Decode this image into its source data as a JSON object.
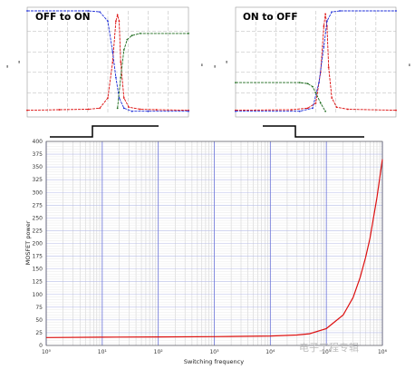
{
  "watermark": "电子工程专辑",
  "colors": {
    "red": "#dd1111",
    "blue": "#1f2fd8",
    "green": "#1e6b1e",
    "grid_major": "#6b74d8",
    "grid_minor": "#c9c9c9"
  },
  "chart_data": [
    {
      "id": "turn_on",
      "type": "line",
      "title": "OFF to ON",
      "series": [
        {
          "color_key": "red",
          "x": [
            0,
            0.2,
            0.38,
            0.45,
            0.5,
            0.53,
            0.55,
            0.56,
            0.57,
            0.58,
            0.6,
            0.63,
            0.7,
            0.8,
            1
          ],
          "y": [
            0.03,
            0.035,
            0.04,
            0.05,
            0.15,
            0.5,
            0.9,
            0.96,
            0.9,
            0.5,
            0.15,
            0.06,
            0.04,
            0.035,
            0.03
          ]
        },
        {
          "color_key": "blue",
          "x": [
            0,
            0.38,
            0.45,
            0.5,
            0.53,
            0.55,
            0.57,
            0.6,
            0.65,
            0.75,
            1
          ],
          "y": [
            1.0,
            1.0,
            0.99,
            0.9,
            0.6,
            0.35,
            0.15,
            0.05,
            0.02,
            0.02,
            0.02
          ]
        },
        {
          "color_key": "green",
          "x": [
            0,
            0.5,
            0.56,
            0.58,
            0.6,
            0.62,
            0.65,
            0.7,
            1
          ],
          "y": [
            null,
            null,
            0.05,
            0.35,
            0.62,
            0.72,
            0.76,
            0.78,
            0.78
          ]
        }
      ]
    },
    {
      "id": "turn_off",
      "type": "line",
      "title": "ON to OFF",
      "series": [
        {
          "color_key": "red",
          "x": [
            0,
            0.35,
            0.45,
            0.5,
            0.53,
            0.55,
            0.56,
            0.57,
            0.58,
            0.6,
            0.63,
            0.7,
            1
          ],
          "y": [
            0.03,
            0.035,
            0.05,
            0.1,
            0.4,
            0.85,
            0.97,
            0.85,
            0.45,
            0.15,
            0.06,
            0.04,
            0.03
          ]
        },
        {
          "color_key": "blue",
          "x": [
            0,
            0.4,
            0.48,
            0.52,
            0.55,
            0.57,
            0.6,
            0.65,
            1
          ],
          "y": [
            0.02,
            0.02,
            0.05,
            0.3,
            0.65,
            0.9,
            0.99,
            1.0,
            1.0
          ]
        },
        {
          "color_key": "green",
          "x": [
            0,
            0.4,
            0.45,
            0.48,
            0.5,
            0.53,
            0.56,
            0.6
          ],
          "y": [
            0.3,
            0.3,
            0.29,
            0.26,
            0.2,
            0.1,
            0.02,
            null
          ]
        }
      ]
    },
    {
      "id": "power_vs_freq",
      "type": "line",
      "xlabel": "Switching frequency",
      "ylabel": "MOSFET power",
      "x_scale": "log",
      "xlim": [
        1,
        1000000
      ],
      "ylim": [
        0,
        400
      ],
      "x_ticks": [
        "10⁰",
        "10¹",
        "10²",
        "10³",
        "10⁴",
        "10⁵",
        "10⁶"
      ],
      "y_ticks": [
        "0",
        "25",
        "50",
        "75",
        "100",
        "125",
        "150",
        "175",
        "200",
        "225",
        "250",
        "275",
        "300",
        "325",
        "350",
        "375",
        "400"
      ],
      "series": [
        {
          "color_key": "red",
          "x": [
            1,
            10,
            100,
            1000,
            10000,
            30000,
            50000,
            100000,
            200000,
            300000,
            400000,
            500000,
            600000,
            800000,
            1000000
          ],
          "y": [
            15.5,
            16.1,
            16.8,
            17.2,
            18.5,
            20.5,
            23,
            33,
            60,
            94,
            133,
            172,
            210,
            290,
            365
          ]
        }
      ]
    }
  ]
}
